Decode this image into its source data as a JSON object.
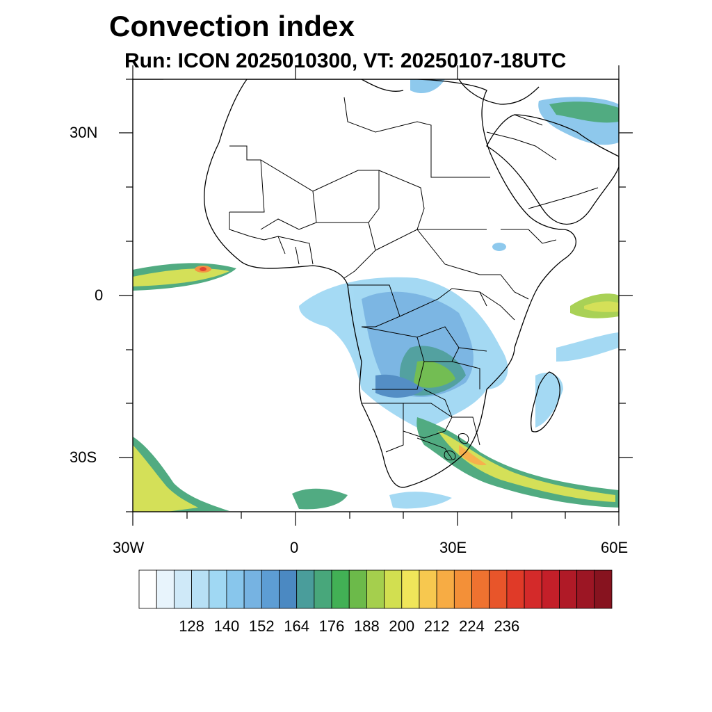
{
  "title": "Convection index",
  "subtitle": "Run: ICON 2025010300,  VT: 20250107-18UTC",
  "axes": {
    "lat_labels": [
      "30N",
      "0",
      "30S"
    ],
    "lon_labels": [
      "30W",
      "0",
      "30E",
      "60E"
    ]
  },
  "colorbar": {
    "labels": [
      "128",
      "140",
      "152",
      "164",
      "176",
      "188",
      "200",
      "212",
      "224",
      "236"
    ],
    "colors": [
      "#ffffff",
      "#e8f4fc",
      "#cfe9f8",
      "#b7e0f5",
      "#a0d8f3",
      "#88c6ec",
      "#76b3e2",
      "#5d9dd4",
      "#4b89c2",
      "#4a9d9b",
      "#48a77b",
      "#42b055",
      "#6cba4a",
      "#a5cf4d",
      "#d2df50",
      "#f0e65a",
      "#f7c84f",
      "#f7ac44",
      "#f39038",
      "#ef7230",
      "#e8552a",
      "#e03a28",
      "#d42a2a",
      "#c41f29",
      "#b01a27",
      "#9c1624",
      "#87131f"
    ]
  }
}
